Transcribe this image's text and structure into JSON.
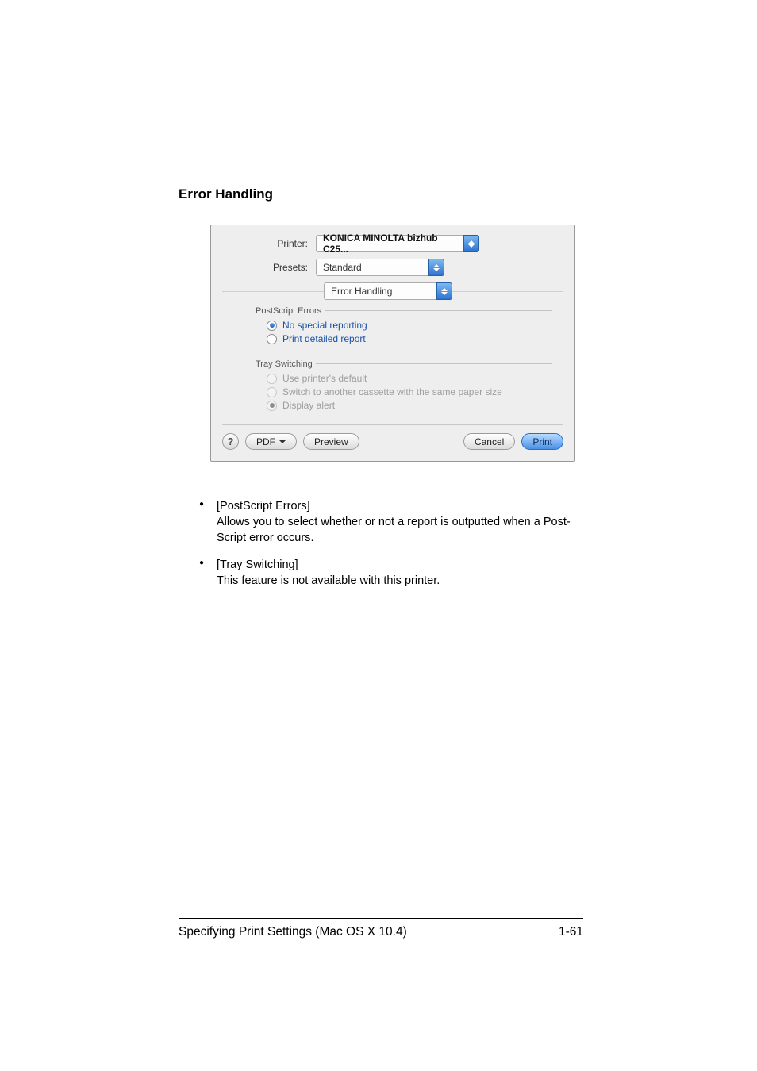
{
  "section_title": "Error Handling",
  "dialog": {
    "printer_label": "Printer:",
    "printer_value": "KONICA MINOLTA bizhub C25...",
    "presets_label": "Presets:",
    "presets_value": "Standard",
    "pane_value": "Error Handling",
    "group1": {
      "title": "PostScript Errors",
      "opt1": "No special reporting",
      "opt2": "Print detailed report"
    },
    "group2": {
      "title": "Tray Switching",
      "opt1": "Use printer's default",
      "opt2": "Switch to another cassette with the same paper size",
      "opt3": "Display alert"
    },
    "help": "?",
    "pdf": "PDF",
    "preview": "Preview",
    "cancel": "Cancel",
    "print": "Print"
  },
  "bullets": {
    "b1_title": "[PostScript Errors]",
    "b1_body": "Allows you to select whether or not a report is outputted when a Post­Script error occurs.",
    "b2_title": "[Tray Switching]",
    "b2_body": "This feature is not available with this printer."
  },
  "footer": {
    "left": "Specifying Print Settings (Mac OS X 10.4)",
    "right": "1-61"
  }
}
